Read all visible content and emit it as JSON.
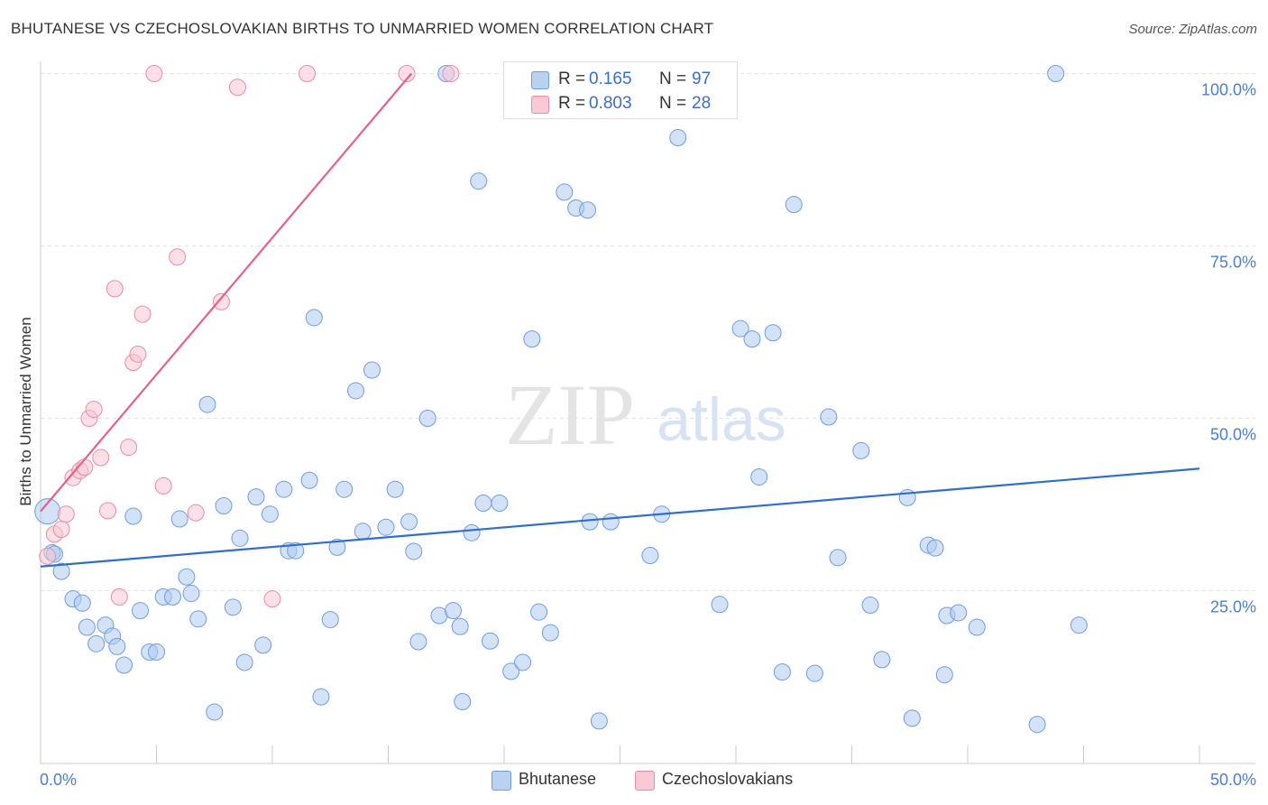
{
  "title": "BHUTANESE VS CZECHOSLOVAKIAN BIRTHS TO UNMARRIED WOMEN CORRELATION CHART",
  "source": "Source: ZipAtlas.com",
  "watermark": {
    "zip": "ZIP",
    "atlas": "atlas"
  },
  "legend": {
    "r_label": "R =",
    "n_label": "N =",
    "rows": [
      {
        "series": "Bhutanese",
        "r": "0.165",
        "n": "97",
        "fill": "#b9d2f2",
        "stroke": "#6d9de0"
      },
      {
        "series": "Czechoslovakians",
        "r": "0.803",
        "n": "28",
        "fill": "#f9c9d6",
        "stroke": "#ec8aa5"
      }
    ]
  },
  "colors": {
    "blue_point_fill": "#aecbf0",
    "blue_point_stroke": "#6d9de0",
    "blue_line": "#2f6fcc",
    "pink_point_fill": "#f8c6d4",
    "pink_point_stroke": "#eb8aa5",
    "pink_line": "#e5608a",
    "grid": "#e3e3e3",
    "tick_text": "#4a7fd0"
  },
  "chart_data": {
    "type": "scatter",
    "title": "BHUTANESE VS CZECHOSLOVAKIAN BIRTHS TO UNMARRIED WOMEN CORRELATION CHART",
    "xlabel": "",
    "ylabel": "Births to Unmarried Women",
    "xlim": [
      0,
      50
    ],
    "ylim": [
      0,
      100
    ],
    "x_tick_labels": [
      "0.0%",
      "50.0%"
    ],
    "y_tick_labels": [
      "25.0%",
      "50.0%",
      "75.0%",
      "100.0%"
    ],
    "y_ticks": [
      25,
      50,
      75,
      100
    ],
    "grid": true,
    "legend_position": "bottom",
    "series": [
      {
        "name": "Bhutanese",
        "trend": {
          "x": [
            0,
            50
          ],
          "y": [
            28.5,
            42.7
          ]
        },
        "points": [
          [
            0.3,
            36.5
          ],
          [
            0.5,
            30.5
          ],
          [
            0.9,
            27.8
          ],
          [
            1.4,
            23.8
          ],
          [
            1.8,
            23.2
          ],
          [
            2.0,
            19.7
          ],
          [
            2.4,
            17.3
          ],
          [
            2.8,
            20.0
          ],
          [
            3.1,
            18.4
          ],
          [
            3.3,
            16.9
          ],
          [
            3.6,
            14.2
          ],
          [
            4.0,
            35.8
          ],
          [
            4.3,
            22.1
          ],
          [
            4.7,
            16.1
          ],
          [
            5.0,
            16.1
          ],
          [
            5.3,
            24.1
          ],
          [
            5.7,
            24.1
          ],
          [
            6.0,
            35.4
          ],
          [
            6.3,
            27.0
          ],
          [
            6.5,
            24.6
          ],
          [
            6.8,
            20.9
          ],
          [
            7.2,
            52.0
          ],
          [
            7.5,
            7.4
          ],
          [
            7.9,
            37.3
          ],
          [
            8.3,
            22.6
          ],
          [
            8.6,
            32.6
          ],
          [
            8.8,
            14.6
          ],
          [
            9.3,
            38.6
          ],
          [
            9.6,
            17.1
          ],
          [
            9.9,
            36.1
          ],
          [
            10.5,
            39.7
          ],
          [
            10.7,
            30.8
          ],
          [
            11.0,
            30.8
          ],
          [
            11.6,
            41.0
          ],
          [
            11.8,
            64.6
          ],
          [
            12.1,
            9.6
          ],
          [
            12.5,
            20.8
          ],
          [
            12.8,
            31.3
          ],
          [
            13.1,
            39.7
          ],
          [
            13.6,
            54.0
          ],
          [
            13.9,
            33.6
          ],
          [
            14.3,
            57.0
          ],
          [
            14.9,
            34.2
          ],
          [
            15.3,
            39.7
          ],
          [
            15.9,
            35.0
          ],
          [
            16.1,
            30.7
          ],
          [
            16.3,
            17.6
          ],
          [
            16.7,
            50.0
          ],
          [
            17.2,
            21.4
          ],
          [
            17.5,
            100.0
          ],
          [
            17.8,
            22.1
          ],
          [
            18.1,
            19.8
          ],
          [
            18.2,
            8.9
          ],
          [
            18.6,
            33.4
          ],
          [
            18.9,
            84.4
          ],
          [
            19.1,
            37.7
          ],
          [
            19.4,
            17.7
          ],
          [
            19.8,
            37.7
          ],
          [
            20.3,
            13.3
          ],
          [
            20.8,
            14.6
          ],
          [
            21.2,
            61.5
          ],
          [
            21.5,
            21.9
          ],
          [
            22.0,
            18.9
          ],
          [
            22.6,
            82.8
          ],
          [
            23.1,
            80.5
          ],
          [
            23.6,
            80.2
          ],
          [
            23.7,
            35.0
          ],
          [
            24.1,
            6.1
          ],
          [
            24.6,
            35.0
          ],
          [
            26.3,
            30.1
          ],
          [
            26.8,
            36.1
          ],
          [
            27.5,
            90.7
          ],
          [
            29.3,
            23.0
          ],
          [
            30.2,
            63.0
          ],
          [
            30.7,
            61.5
          ],
          [
            31.0,
            41.5
          ],
          [
            31.6,
            62.4
          ],
          [
            32.0,
            13.2
          ],
          [
            32.5,
            81.0
          ],
          [
            33.4,
            13.0
          ],
          [
            34.0,
            50.2
          ],
          [
            34.4,
            29.8
          ],
          [
            35.4,
            45.3
          ],
          [
            35.8,
            22.9
          ],
          [
            36.3,
            15.0
          ],
          [
            37.4,
            38.5
          ],
          [
            37.6,
            6.5
          ],
          [
            38.3,
            31.6
          ],
          [
            38.6,
            31.2
          ],
          [
            39.0,
            12.8
          ],
          [
            39.1,
            21.4
          ],
          [
            39.6,
            21.8
          ],
          [
            40.4,
            19.7
          ],
          [
            43.0,
            5.6
          ],
          [
            43.8,
            100.0
          ],
          [
            44.8,
            20.0
          ],
          [
            0.6,
            30.3
          ]
        ]
      },
      {
        "name": "Czechoslovakians",
        "trend": {
          "x": [
            0,
            16
          ],
          "y": [
            36.5,
            100.0
          ]
        },
        "points": [
          [
            0.3,
            30.0
          ],
          [
            0.6,
            33.2
          ],
          [
            0.9,
            33.9
          ],
          [
            1.1,
            36.1
          ],
          [
            1.4,
            41.4
          ],
          [
            1.7,
            42.4
          ],
          [
            1.9,
            42.9
          ],
          [
            2.1,
            50.0
          ],
          [
            2.3,
            51.3
          ],
          [
            2.6,
            44.3
          ],
          [
            2.9,
            36.6
          ],
          [
            3.2,
            68.8
          ],
          [
            3.4,
            24.1
          ],
          [
            3.8,
            45.8
          ],
          [
            4.0,
            58.1
          ],
          [
            4.2,
            59.3
          ],
          [
            4.4,
            65.1
          ],
          [
            4.9,
            100.0
          ],
          [
            5.3,
            40.2
          ],
          [
            5.9,
            73.4
          ],
          [
            6.7,
            36.3
          ],
          [
            7.8,
            66.9
          ],
          [
            8.5,
            98.0
          ],
          [
            10.0,
            23.8
          ],
          [
            11.5,
            100.0
          ],
          [
            15.8,
            100.0
          ],
          [
            17.7,
            100.0
          ],
          [
            20.5,
            100.0
          ]
        ]
      }
    ]
  },
  "bottom_legend": [
    {
      "label": "Bhutanese",
      "fill": "#b9d2f2",
      "stroke": "#6d9de0"
    },
    {
      "label": "Czechoslovakians",
      "fill": "#f9c9d6",
      "stroke": "#ec8aa5"
    }
  ]
}
